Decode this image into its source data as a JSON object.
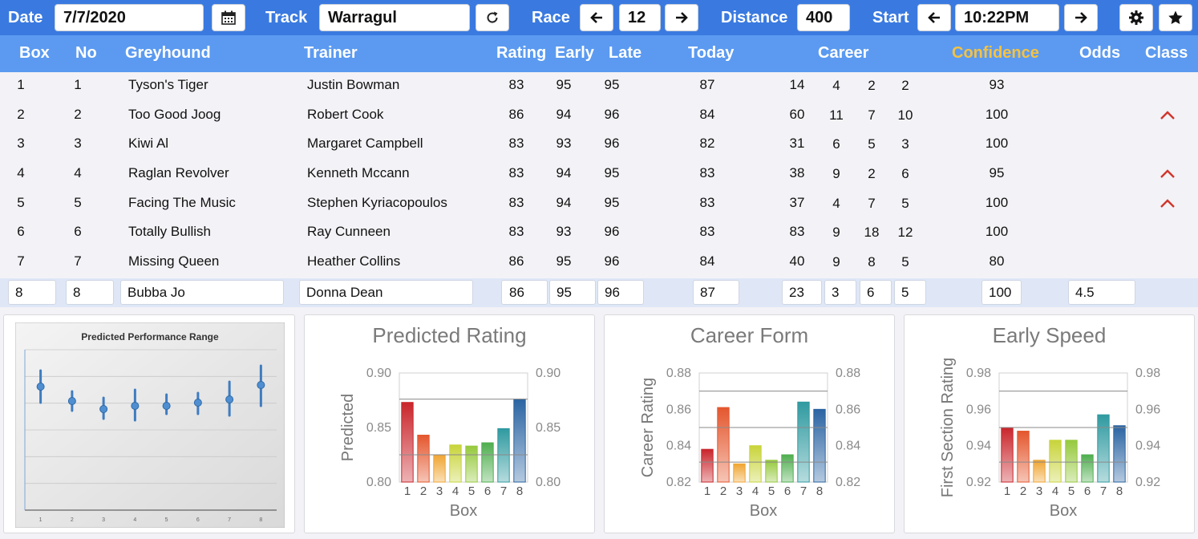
{
  "toolbar": {
    "date_label": "Date",
    "date_value": "7/7/2020",
    "calendar_icon": "calendar-icon",
    "track_label": "Track",
    "track_value": "Warragul",
    "refresh_icon": "refresh-icon",
    "race_label": "Race",
    "race_value": "12",
    "prev_icon": "arrow-left-icon",
    "next_icon": "arrow-right-icon",
    "distance_label": "Distance",
    "distance_value": "400",
    "start_label": "Start",
    "start_value": "10:22PM",
    "settings_icon": "gear-icon",
    "favorite_icon": "star-icon"
  },
  "table": {
    "headers": {
      "box": "Box",
      "no": "No",
      "greyhound": "Greyhound",
      "trainer": "Trainer",
      "rating": "Rating",
      "early": "Early",
      "late": "Late",
      "today": "Today",
      "career": "Career",
      "confidence": "Confidence",
      "odds": "Odds",
      "class": "Class"
    },
    "confidence_color": "#f5c242",
    "class_up_color": "#d0352b",
    "rows": [
      {
        "box": "1",
        "no": "1",
        "greyhound": "Tyson's Tiger",
        "trainer": "Justin Bowman",
        "rating": "83",
        "early": "95",
        "late": "95",
        "today": "87",
        "c1": "14",
        "c2": "4",
        "c3": "2",
        "c4": "2",
        "confidence": "93",
        "odds": "",
        "class_up": false
      },
      {
        "box": "2",
        "no": "2",
        "greyhound": "Too Good Joog",
        "trainer": "Robert Cook",
        "rating": "86",
        "early": "94",
        "late": "96",
        "today": "84",
        "c1": "60",
        "c2": "11",
        "c3": "7",
        "c4": "10",
        "confidence": "100",
        "odds": "",
        "class_up": true
      },
      {
        "box": "3",
        "no": "3",
        "greyhound": "Kiwi Al",
        "trainer": "Margaret Campbell",
        "rating": "83",
        "early": "93",
        "late": "96",
        "today": "82",
        "c1": "31",
        "c2": "6",
        "c3": "5",
        "c4": "3",
        "confidence": "100",
        "odds": "",
        "class_up": false
      },
      {
        "box": "4",
        "no": "4",
        "greyhound": "Raglan Revolver",
        "trainer": "Kenneth Mccann",
        "rating": "83",
        "early": "94",
        "late": "95",
        "today": "83",
        "c1": "38",
        "c2": "9",
        "c3": "2",
        "c4": "6",
        "confidence": "95",
        "odds": "",
        "class_up": true
      },
      {
        "box": "5",
        "no": "5",
        "greyhound": "Facing The Music",
        "trainer": "Stephen Kyriacopoulos",
        "rating": "83",
        "early": "94",
        "late": "95",
        "today": "83",
        "c1": "37",
        "c2": "4",
        "c3": "7",
        "c4": "5",
        "confidence": "100",
        "odds": "",
        "class_up": true
      },
      {
        "box": "6",
        "no": "6",
        "greyhound": "Totally Bullish",
        "trainer": "Ray Cunneen",
        "rating": "83",
        "early": "93",
        "late": "96",
        "today": "83",
        "c1": "83",
        "c2": "9",
        "c3": "18",
        "c4": "12",
        "confidence": "100",
        "odds": "",
        "class_up": false
      },
      {
        "box": "7",
        "no": "7",
        "greyhound": "Missing Queen",
        "trainer": "Heather Collins",
        "rating": "86",
        "early": "95",
        "late": "96",
        "today": "84",
        "c1": "40",
        "c2": "9",
        "c3": "8",
        "c4": "5",
        "confidence": "80",
        "odds": "",
        "class_up": false
      }
    ],
    "edit_row": {
      "box": "8",
      "no": "8",
      "greyhound": "Bubba Jo",
      "trainer": "Donna Dean",
      "rating": "86",
      "early": "95",
      "late": "96",
      "today": "87",
      "c1": "23",
      "c2": "3",
      "c3": "6",
      "c4": "5",
      "confidence": "100",
      "odds": "4.5"
    }
  },
  "chart_data": [
    {
      "type": "scatter",
      "title": "Predicted Performance Range",
      "x": [
        1,
        2,
        3,
        4,
        5,
        6,
        7,
        8
      ],
      "y": [
        0.857,
        0.848,
        0.843,
        0.845,
        0.845,
        0.847,
        0.849,
        0.858
      ],
      "y_low": [
        0.847,
        0.842,
        0.837,
        0.836,
        0.84,
        0.84,
        0.839,
        0.845
      ],
      "y_high": [
        0.867,
        0.854,
        0.85,
        0.855,
        0.852,
        0.853,
        0.86,
        0.87
      ],
      "ylim": [
        0.78,
        0.88
      ],
      "grid": true
    },
    {
      "type": "bar",
      "title": "Predicted Rating",
      "xlabel": "Box",
      "ylabel": "Predicted",
      "categories": [
        "1",
        "2",
        "3",
        "4",
        "5",
        "6",
        "7",
        "8"
      ],
      "values": [
        0.873,
        0.843,
        0.825,
        0.834,
        0.833,
        0.836,
        0.849,
        0.876
      ],
      "ylim": [
        0.8,
        0.9
      ],
      "ticks": [
        "0.80",
        "0.85",
        "0.90"
      ],
      "reference_lines": [
        0.825,
        0.876
      ],
      "colors": [
        "#c9252b",
        "#e4572e",
        "#f0a532",
        "#c8d43a",
        "#96c93d",
        "#4fae4f",
        "#2f9aa0",
        "#2a64a2"
      ]
    },
    {
      "type": "bar",
      "title": "Career Form",
      "xlabel": "Box",
      "ylabel": "Career Rating",
      "categories": [
        "1",
        "2",
        "3",
        "4",
        "5",
        "6",
        "7",
        "8"
      ],
      "values": [
        0.838,
        0.861,
        0.83,
        0.84,
        0.832,
        0.835,
        0.864,
        0.86
      ],
      "ylim": [
        0.82,
        0.88
      ],
      "ticks": [
        "0.82",
        "0.84",
        "0.86",
        "0.88"
      ],
      "reference_lines": [
        0.831,
        0.85,
        0.87
      ],
      "colors": [
        "#c9252b",
        "#e4572e",
        "#f0a532",
        "#c8d43a",
        "#96c93d",
        "#4fae4f",
        "#2f9aa0",
        "#2a64a2"
      ]
    },
    {
      "type": "bar",
      "title": "Early Speed",
      "xlabel": "Box",
      "ylabel": "First Section Rating",
      "categories": [
        "1",
        "2",
        "3",
        "4",
        "5",
        "6",
        "7",
        "8"
      ],
      "values": [
        0.95,
        0.948,
        0.932,
        0.943,
        0.943,
        0.935,
        0.957,
        0.951
      ],
      "ylim": [
        0.92,
        0.98
      ],
      "ticks": [
        "0.92",
        "0.94",
        "0.96",
        "0.98"
      ],
      "reference_lines": [
        0.931,
        0.95,
        0.97
      ],
      "colors": [
        "#c9252b",
        "#e4572e",
        "#f0a532",
        "#c8d43a",
        "#96c93d",
        "#4fae4f",
        "#2f9aa0",
        "#2a64a2"
      ]
    }
  ]
}
